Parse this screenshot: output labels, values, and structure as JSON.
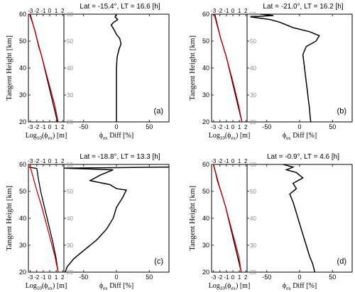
{
  "shared": {
    "y_axis_label": "Tangent Height [km]",
    "left_xlabel_prefix": "Log",
    "left_xlabel_sub": "10",
    "left_xlabel_suffix": "(ϕ",
    "left_xlabel_sub2": "ex",
    "left_xlabel_end": ") [m]",
    "right_xlabel_phi": "ϕ",
    "right_xlabel_sub": "ex",
    "right_xlabel_end": " Diff [%]",
    "colors": {
      "profile": "#000000",
      "model": "#cc0000",
      "axes": "#000000"
    }
  },
  "chart_data": [
    {
      "panel": "(a)",
      "title": "Lat = -15.4°, LT = 16.6  [h]",
      "type": "line",
      "ylim": [
        20,
        60
      ],
      "yticks": [
        20,
        30,
        40,
        50,
        60
      ],
      "left": {
        "xlim": [
          -3.3,
          2.2
        ],
        "xticks": [
          -3,
          -2,
          -1,
          0,
          1,
          2
        ],
        "series": [
          {
            "color": "#000000",
            "x": [
              -3.1,
              -2.7,
              -2.3,
              -2.0,
              -1.7,
              -1.2,
              -0.7,
              -0.2,
              0.3,
              0.8,
              1.2
            ],
            "y": [
              60,
              57,
              54,
              51,
              48,
              44,
              39,
              34,
              29,
              24,
              20
            ]
          },
          {
            "color": "#cc0000",
            "x": [
              -3.0,
              -2.1,
              -1.2,
              -0.2,
              0.8,
              1.3
            ],
            "y": [
              60,
              52,
              44,
              35,
              26,
              20
            ]
          }
        ]
      },
      "right": {
        "xlim": [
          -80,
          80
        ],
        "xticks": [
          -50,
          0,
          50
        ],
        "series": [
          {
            "color": "#000000",
            "x": [
              0,
              -2,
              2,
              -4,
              -8,
              -3,
              0,
              5,
              7,
              4,
              1,
              0,
              0,
              0,
              0,
              0,
              0,
              0
            ],
            "y": [
              60,
              59,
              58,
              57,
              56,
              54,
              52.5,
              51,
              49,
              47,
              44,
              40,
              36,
              32,
              28,
              25,
              22,
              20
            ]
          }
        ]
      }
    },
    {
      "panel": "(b)",
      "title": "Lat = -21.0°, LT = 16.2  [h]",
      "type": "line",
      "ylim": [
        20,
        60
      ],
      "yticks": [
        20,
        30,
        40,
        50,
        60
      ],
      "left": {
        "xlim": [
          -3.3,
          2.2
        ],
        "xticks": [
          -3,
          -2,
          -1,
          0,
          1,
          2
        ],
        "series": [
          {
            "color": "#000000",
            "x": [
              -2.8,
              -2.5,
              -2.2,
              -1.9,
              -1.5,
              -1.0,
              -0.5,
              0.0,
              0.5,
              1.0,
              1.4
            ],
            "y": [
              60,
              57,
              54,
              51,
              48,
              44,
              39,
              34,
              29,
              24,
              20
            ]
          },
          {
            "color": "#cc0000",
            "x": [
              -2.9,
              -2.0,
              -1.0,
              0.0,
              0.9,
              1.4
            ],
            "y": [
              60,
              52,
              44,
              35,
              26,
              20
            ]
          }
        ]
      },
      "right": {
        "xlim": [
          -80,
          80
        ],
        "xticks": [
          -50,
          0,
          50
        ],
        "series": [
          {
            "color": "#000000",
            "x": [
              -60,
              -40,
              -75,
              -45,
              -30,
              -10,
              15,
              30,
              25,
              10,
              5,
              7,
              9,
              11,
              13,
              15,
              16,
              17
            ],
            "y": [
              60,
              59.5,
              59,
              58,
              57,
              55,
              53.5,
              52,
              50,
              48,
              45,
              41,
              37,
              33,
              29,
              25,
              22,
              20
            ]
          }
        ]
      }
    },
    {
      "panel": "(c)",
      "title": "Lat = -18.8°, LT = 13.3  [h]",
      "type": "line",
      "ylim": [
        20,
        60
      ],
      "yticks": [
        20,
        30,
        40,
        50,
        60
      ],
      "left": {
        "xlim": [
          -3.3,
          2.2
        ],
        "xticks": [
          -3,
          -2,
          -1,
          0,
          1,
          2
        ],
        "series": [
          {
            "color": "#000000",
            "x": [
              -3.2,
              -2.0,
              -1.7,
              -1.4,
              -1.0,
              -0.5,
              0.0,
              0.5,
              1.0,
              1.3
            ],
            "y": [
              59,
              58.5,
              54,
              50,
              46,
              41,
              36,
              31,
              25,
              20
            ]
          },
          {
            "color": "#cc0000",
            "x": [
              -3.1,
              -2.2,
              -1.2,
              -0.2,
              0.8,
              1.3
            ],
            "y": [
              60,
              52,
              44,
              35,
              26,
              20
            ]
          }
        ]
      },
      "right": {
        "xlim": [
          -80,
          80
        ],
        "xticks": [
          -50,
          0,
          50
        ],
        "series": [
          {
            "color": "#000000",
            "x": [
              80,
              -80,
              -5,
              -25,
              -40,
              -10,
              0,
              15,
              10,
              0,
              -5,
              -15,
              -30,
              -50,
              -65,
              -75,
              -78
            ],
            "y": [
              59,
              58.6,
              58,
              56,
              54,
              52.5,
              51,
              50.5,
              48,
              44,
              40,
              36,
              32,
              28,
              25,
              22,
              20
            ]
          }
        ]
      }
    },
    {
      "panel": "(d)",
      "title": "Lat = -0.9°, LT = 4.6  [h]",
      "type": "line",
      "ylim": [
        20,
        60
      ],
      "yticks": [
        20,
        30,
        40,
        50,
        60
      ],
      "left": {
        "xlim": [
          -3.3,
          2.2
        ],
        "xticks": [
          -3,
          -2,
          -1,
          0,
          1,
          2
        ],
        "series": [
          {
            "color": "#000000",
            "x": [
              -3.0,
              -2.7,
              -2.4,
              -2.0,
              -1.6,
              -1.1,
              -0.6,
              -0.1,
              0.4,
              0.9,
              1.3
            ],
            "y": [
              60,
              57,
              54,
              51,
              48,
              44,
              39,
              34,
              29,
              24,
              20
            ]
          },
          {
            "color": "#cc0000",
            "x": [
              -3.0,
              -2.1,
              -1.1,
              -0.1,
              0.9,
              1.3
            ],
            "y": [
              60,
              52,
              44,
              35,
              26,
              20
            ]
          }
        ]
      },
      "right": {
        "xlim": [
          -80,
          80
        ],
        "xticks": [
          -50,
          0,
          50
        ],
        "series": [
          {
            "color": "#000000",
            "x": [
              -25,
              -10,
              -20,
              -5,
              5,
              -10,
              -5,
              -15,
              -10,
              -5,
              0,
              5,
              10,
              15,
              20,
              23
            ],
            "y": [
              60,
              59,
              58,
              57,
              55,
              53,
              51,
              49,
              46,
              42,
              38,
              34,
              30,
              26,
              23,
              20
            ]
          }
        ]
      }
    }
  ]
}
